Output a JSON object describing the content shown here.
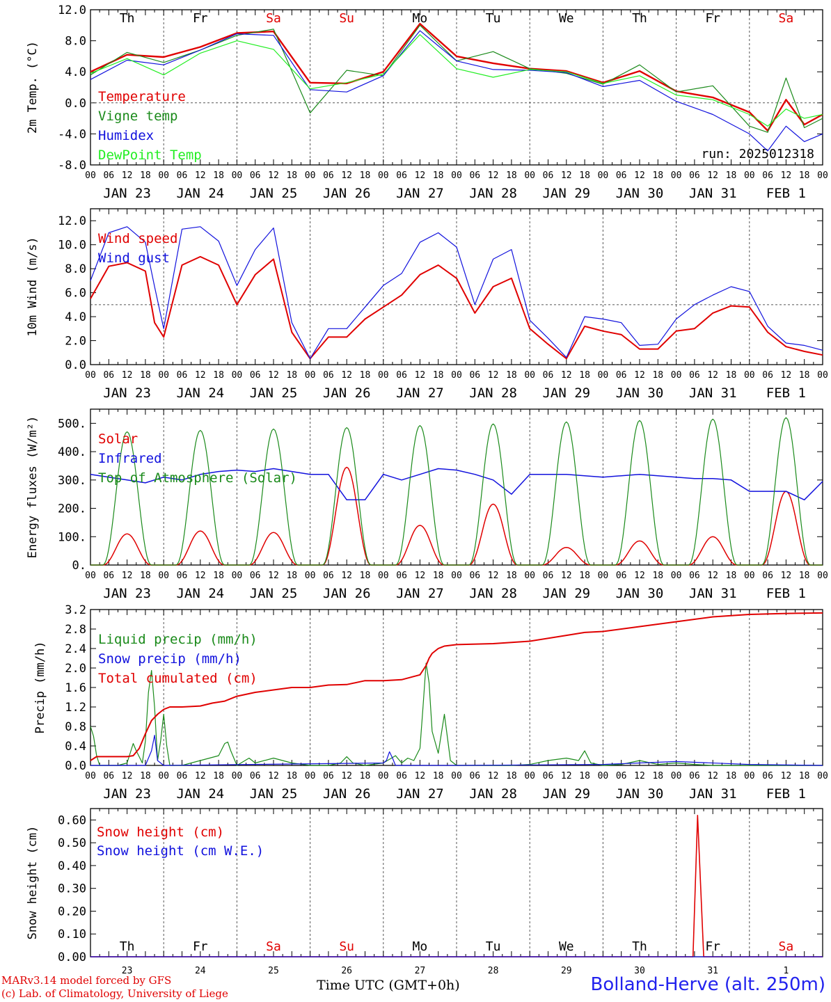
{
  "days": [
    "JAN 23",
    "JAN 24",
    "JAN 25",
    "JAN 26",
    "JAN 27",
    "JAN 28",
    "JAN 29",
    "JAN 30",
    "JAN 31",
    "FEB  1"
  ],
  "weekdays": [
    {
      "label": "Th",
      "color": "#000000"
    },
    {
      "label": "Fr",
      "color": "#000000"
    },
    {
      "label": "Sa",
      "color": "#e00000"
    },
    {
      "label": "Su",
      "color": "#e00000"
    },
    {
      "label": "Mo",
      "color": "#000000"
    },
    {
      "label": "Tu",
      "color": "#000000"
    },
    {
      "label": "We",
      "color": "#000000"
    },
    {
      "label": "Th",
      "color": "#000000"
    },
    {
      "label": "Fr",
      "color": "#000000"
    },
    {
      "label": "Sa",
      "color": "#e00000"
    }
  ],
  "hour_ticks": [
    "00",
    "06",
    "12",
    "18"
  ],
  "hour_end_label": "00",
  "bottom_day_numbers": [
    "23",
    "24",
    "25",
    "26",
    "27",
    "28",
    "29",
    "30",
    "31",
    "1"
  ],
  "footer": {
    "credit_line1": "MARv3.14 model forced by GFS",
    "credit_line2": "(c) Lab. of Climatology, University of Liege",
    "xaxis_title": "Time UTC (GMT+0h)",
    "station": "Bolland-Herve (alt. 250m)"
  },
  "chart_data": [
    {
      "type": "line",
      "id": "temp",
      "ylabel": "2m Temp. (°C)",
      "ylim": [
        -8,
        12
      ],
      "yticks": [
        -8,
        -4,
        0,
        4,
        8,
        12
      ],
      "ytick_labels": [
        "-8.0",
        "-4.0",
        "0.0",
        "4.0",
        "8.0",
        "12.0"
      ],
      "ref_line": 0,
      "annotation": "run: 2025012318",
      "x_hours": [
        0,
        12,
        24,
        36,
        48,
        60,
        72,
        84,
        96,
        108,
        120,
        132,
        144,
        156,
        168,
        180,
        192,
        204,
        216,
        222,
        228,
        234,
        240
      ],
      "series": [
        {
          "name": "Temperature",
          "color": "#e00000",
          "width": 2.4,
          "values": [
            4,
            6.2,
            5.9,
            7.2,
            9,
            9.2,
            2.6,
            2.5,
            4,
            10.2,
            6,
            5.1,
            4.4,
            4.1,
            2.6,
            4.1,
            1.5,
            0.7,
            -1.2,
            -3.6,
            0.4,
            -2.8,
            -1.5
          ]
        },
        {
          "name": "Vigne temp",
          "color": "#1a8a1a",
          "width": 1.2,
          "values": [
            3.6,
            6.5,
            5.2,
            6.8,
            8.7,
            9.5,
            -1.3,
            4.2,
            3.5,
            10,
            5.4,
            6.6,
            4.4,
            3.8,
            2.4,
            4.9,
            1.4,
            2.2,
            -3,
            -3.8,
            3.2,
            -3.2,
            -2
          ]
        },
        {
          "name": "Humidex",
          "color": "#1111dd",
          "width": 1.2,
          "values": [
            3,
            5.5,
            4.9,
            6.8,
            8.9,
            8.7,
            1.7,
            1.4,
            3.5,
            9.3,
            5.4,
            4.3,
            4.2,
            3.9,
            2.1,
            2.9,
            0.2,
            -1.5,
            -4,
            -6.2,
            -3,
            -5,
            -4
          ]
        },
        {
          "name": "DewPoint Temp",
          "color": "#22ee22",
          "width": 1.2,
          "values": [
            3.8,
            5.7,
            3.6,
            6.4,
            8,
            6.9,
            1.8,
            2.6,
            3.7,
            8.8,
            4.4,
            3.3,
            4.3,
            4,
            2.5,
            3.5,
            1,
            0.4,
            -1.5,
            -3,
            -0.8,
            -2,
            -1.5
          ]
        }
      ]
    },
    {
      "type": "line",
      "id": "wind",
      "ylabel": "10m Wind (m/s)",
      "ylim": [
        0,
        13
      ],
      "yticks": [
        0,
        2,
        4,
        6,
        8,
        10,
        12
      ],
      "ytick_labels": [
        "0.0",
        "2.0",
        "4.0",
        "6.0",
        "8.0",
        "10.0",
        "12.0"
      ],
      "ref_line": 5,
      "x_hours": [
        0,
        6,
        12,
        18,
        21,
        24,
        30,
        36,
        42,
        48,
        54,
        60,
        66,
        72,
        78,
        84,
        90,
        96,
        102,
        108,
        114,
        120,
        126,
        132,
        138,
        144,
        150,
        156,
        162,
        168,
        174,
        180,
        186,
        192,
        198,
        204,
        210,
        216,
        222,
        228,
        234,
        240
      ],
      "series": [
        {
          "name": "Wind speed",
          "color": "#e00000",
          "width": 2,
          "values": [
            5.5,
            8.2,
            8.5,
            7.8,
            3.5,
            2.3,
            8.3,
            9,
            8.3,
            5,
            7.5,
            8.8,
            2.7,
            0.5,
            2.3,
            2.3,
            3.8,
            4.8,
            5.8,
            7.5,
            8.3,
            7.2,
            4.3,
            6.5,
            7.2,
            3,
            1.7,
            0.5,
            3.2,
            2.8,
            2.5,
            1.3,
            1.3,
            2.8,
            3,
            4.3,
            4.9,
            4.8,
            2.7,
            1.5,
            1.1,
            0.8
          ]
        },
        {
          "name": "Wind gust",
          "color": "#1111dd",
          "width": 1.2,
          "values": [
            7,
            11,
            11.5,
            10.2,
            6.5,
            3,
            11.3,
            11.5,
            10.3,
            6.6,
            9.6,
            11.4,
            3.5,
            0.5,
            3,
            3,
            4.8,
            6.6,
            7.6,
            10.2,
            11,
            9.8,
            5,
            8.8,
            9.6,
            3.7,
            2.2,
            0.6,
            4,
            3.8,
            3.5,
            1.6,
            1.7,
            3.8,
            5,
            5.8,
            6.5,
            6.1,
            3.2,
            1.8,
            1.6,
            1.2
          ]
        }
      ]
    },
    {
      "type": "line",
      "id": "energy",
      "ylabel": "Energy fluxes (W/m²)",
      "ylim": [
        0,
        550
      ],
      "yticks": [
        0,
        100,
        200,
        300,
        400,
        500
      ],
      "ytick_labels": [
        "0.",
        "100.",
        "200.",
        "300.",
        "400.",
        "500."
      ],
      "series": [
        {
          "name": "Solar",
          "color": "#e00000",
          "width": 1.5,
          "peaks": [
            [
              12,
              110
            ],
            [
              36,
              120
            ],
            [
              60,
              115
            ],
            [
              84,
              345
            ],
            [
              108,
              140
            ],
            [
              132,
              215
            ],
            [
              156,
              62
            ],
            [
              180,
              85
            ],
            [
              204,
              100
            ],
            [
              228,
              260
            ]
          ]
        },
        {
          "name": "Infrared",
          "color": "#1111dd",
          "width": 1.5,
          "x_hours": [
            0,
            6,
            12,
            18,
            24,
            30,
            36,
            42,
            48,
            54,
            60,
            66,
            72,
            78,
            84,
            90,
            96,
            102,
            108,
            114,
            120,
            126,
            132,
            138,
            144,
            150,
            156,
            162,
            168,
            174,
            180,
            186,
            192,
            198,
            204,
            210,
            216,
            222,
            228,
            234,
            240
          ],
          "values": [
            320,
            310,
            300,
            290,
            310,
            300,
            320,
            330,
            335,
            330,
            340,
            330,
            320,
            320,
            230,
            230,
            320,
            300,
            320,
            340,
            335,
            320,
            300,
            250,
            320,
            320,
            320,
            315,
            310,
            315,
            320,
            315,
            310,
            305,
            305,
            300,
            260,
            260,
            260,
            230,
            295
          ]
        },
        {
          "name": "Top of Atmosphere (Solar)",
          "color": "#1a8a1a",
          "width": 1.2,
          "peaks": [
            [
              12,
              470
            ],
            [
              36,
              475
            ],
            [
              60,
              480
            ],
            [
              84,
              485
            ],
            [
              108,
              492
            ],
            [
              132,
              498
            ],
            [
              156,
              505
            ],
            [
              180,
              510
            ],
            [
              204,
              515
            ],
            [
              228,
              520
            ]
          ]
        }
      ]
    },
    {
      "type": "line",
      "id": "precip",
      "ylabel": "Precip (mm/h)",
      "ylim": [
        0,
        3.2
      ],
      "yticks": [
        0,
        0.4,
        0.8,
        1.2,
        1.6,
        2,
        2.4,
        2.8,
        3.2
      ],
      "ytick_labels": [
        "0.0",
        "0.4",
        "0.8",
        "1.2",
        "1.6",
        "2.0",
        "2.4",
        "2.8",
        "3.2"
      ],
      "series": [
        {
          "name": "Liquid precip (mm/h)",
          "color": "#1a8a1a",
          "width": 1.2,
          "x_hours": [
            0,
            1,
            2,
            3,
            6,
            9,
            12,
            14,
            15,
            17,
            18,
            19,
            20,
            21,
            22,
            23,
            24,
            25,
            26,
            30,
            36,
            42,
            44,
            45,
            46,
            48,
            52,
            54,
            60,
            66,
            72,
            78,
            82,
            84,
            86,
            90,
            96,
            100,
            102,
            104,
            106,
            108,
            109,
            110,
            111,
            112,
            114,
            116,
            118,
            120,
            126,
            132,
            138,
            144,
            150,
            156,
            160,
            162,
            164,
            168,
            174,
            180,
            186,
            192,
            198,
            204,
            210,
            216,
            222,
            228,
            234,
            240
          ],
          "values": [
            0.8,
            0.6,
            0.2,
            0,
            0,
            0,
            0.05,
            0.45,
            0.3,
            0.05,
            0.5,
            1.5,
            1.95,
            1.2,
            0.1,
            0.5,
            1.05,
            0.4,
            0,
            0,
            0.1,
            0.2,
            0.45,
            0.48,
            0.3,
            0,
            0.15,
            0.05,
            0.15,
            0.05,
            0,
            0,
            0.05,
            0.18,
            0.05,
            0,
            0.05,
            0.2,
            0.05,
            0.15,
            0.1,
            0.35,
            1.2,
            2.1,
            1.7,
            0.7,
            0.25,
            1.05,
            0.1,
            0,
            0,
            0,
            0,
            0.02,
            0.1,
            0.15,
            0.1,
            0.3,
            0.05,
            0,
            0.02,
            0.1,
            0.02,
            0.05,
            0.02,
            0,
            0,
            0,
            0,
            0,
            0,
            0
          ]
        },
        {
          "name": "Snow precip (mm/h)",
          "color": "#1111dd",
          "width": 1.2,
          "x_hours": [
            0,
            18,
            20,
            21,
            22,
            24,
            96,
            97,
            98,
            99,
            100,
            120,
            168,
            180,
            192,
            216,
            240
          ],
          "values": [
            0,
            0,
            0.3,
            0.62,
            0.1,
            0,
            0.05,
            0.1,
            0.28,
            0.15,
            0,
            0,
            0.02,
            0.05,
            0.08,
            0.02,
            0
          ]
        },
        {
          "name": "Total cumulated (cm)",
          "color": "#e00000",
          "width": 2,
          "x_hours": [
            0,
            2,
            6,
            12,
            14,
            16,
            18,
            20,
            22,
            24,
            26,
            30,
            36,
            40,
            44,
            48,
            54,
            60,
            66,
            72,
            78,
            84,
            90,
            96,
            102,
            108,
            110,
            111,
            112,
            114,
            116,
            120,
            132,
            144,
            156,
            162,
            168,
            174,
            180,
            186,
            192,
            204,
            216,
            228,
            240
          ],
          "values": [
            0.1,
            0.18,
            0.18,
            0.18,
            0.2,
            0.35,
            0.65,
            0.92,
            1.05,
            1.15,
            1.2,
            1.2,
            1.22,
            1.28,
            1.32,
            1.42,
            1.5,
            1.55,
            1.6,
            1.6,
            1.65,
            1.66,
            1.74,
            1.74,
            1.76,
            1.86,
            2.05,
            2.2,
            2.3,
            2.4,
            2.45,
            2.48,
            2.5,
            2.55,
            2.67,
            2.73,
            2.75,
            2.8,
            2.85,
            2.9,
            2.95,
            3.05,
            3.1,
            3.12,
            3.13
          ]
        }
      ]
    },
    {
      "type": "line",
      "id": "snow",
      "ylabel": "Snow height (cm)",
      "ylim": [
        0,
        0.65
      ],
      "yticks": [
        0,
        0.1,
        0.2,
        0.3,
        0.4,
        0.5,
        0.6
      ],
      "ytick_labels": [
        "0.00",
        "0.10",
        "0.20",
        "0.30",
        "0.40",
        "0.50",
        "0.60"
      ],
      "series": [
        {
          "name": "Snow height (cm)",
          "color": "#e00000",
          "width": 1.6,
          "x_hours": [
            0,
            197.5,
            199,
            201,
            240
          ],
          "values": [
            0,
            0,
            0.62,
            0,
            0
          ]
        },
        {
          "name": "Snow height (cm W.E.)",
          "color": "#1111dd",
          "width": 1.2,
          "x_hours": [
            0,
            240
          ],
          "values": [
            0,
            0
          ]
        }
      ]
    }
  ]
}
